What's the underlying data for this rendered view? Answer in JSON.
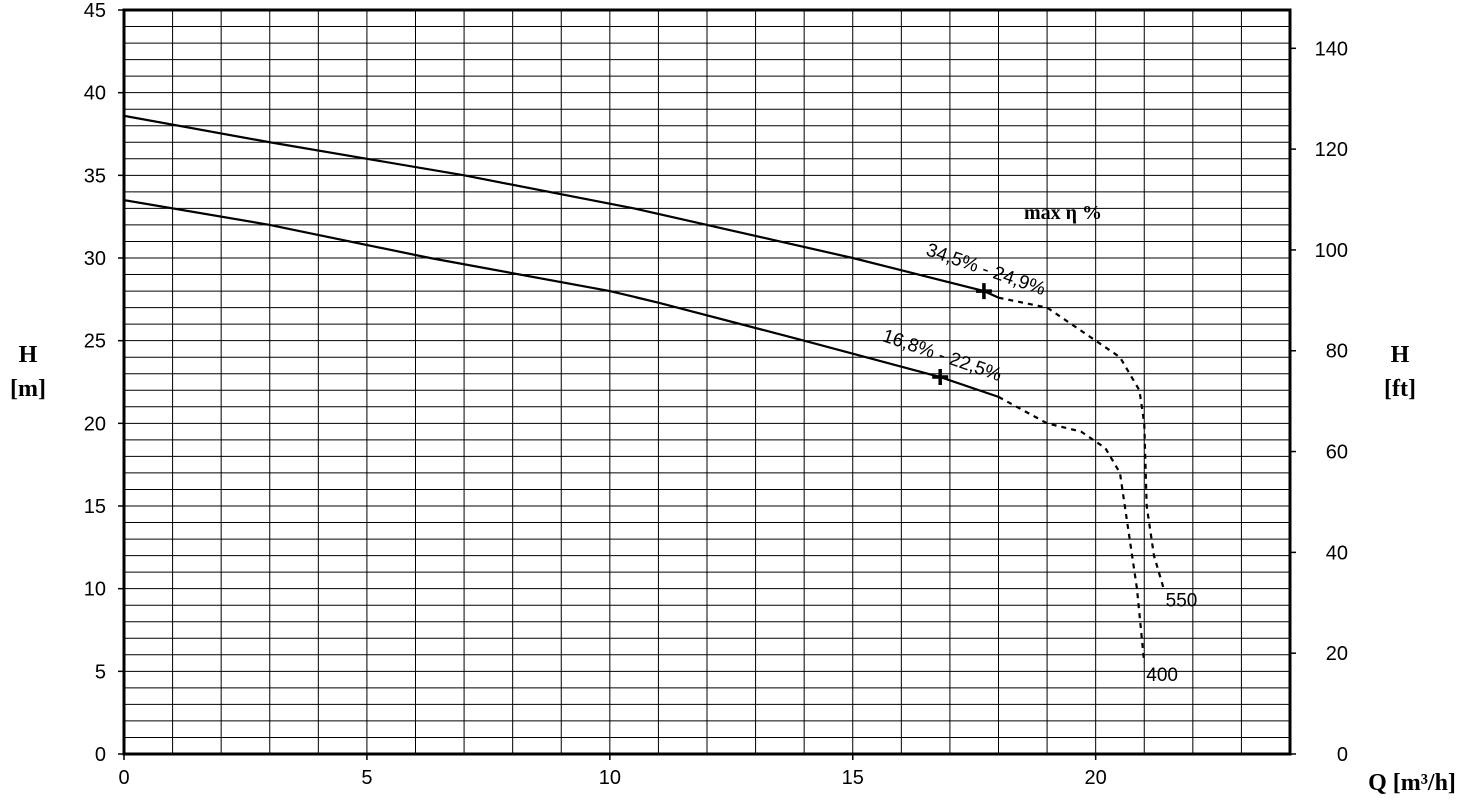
{
  "chart_data": {
    "type": "line",
    "xlabel": "Q [m³/h]",
    "ylabel": [
      "H",
      "[m]"
    ],
    "y2label": [
      "H",
      "[ft]"
    ],
    "xlim": [
      0,
      24
    ],
    "ylim": [
      0,
      45
    ],
    "y2lim": [
      0,
      147.6
    ],
    "xticks": [
      0,
      5,
      10,
      15,
      20
    ],
    "yticks": [
      0,
      5,
      10,
      15,
      20,
      25,
      30,
      35,
      40,
      45
    ],
    "y2ticks": [
      0,
      20,
      40,
      60,
      80,
      100,
      120,
      140
    ],
    "xminorticks": [
      0,
      1,
      2,
      3,
      4,
      5,
      6,
      7,
      8,
      9,
      10,
      11,
      12,
      13,
      14,
      15,
      16,
      17,
      18,
      19,
      20,
      21,
      22,
      23,
      24
    ],
    "yminorticks": [
      0,
      1,
      2,
      3,
      4,
      5,
      6,
      7,
      8,
      9,
      10,
      11,
      12,
      13,
      14,
      15,
      16,
      17,
      18,
      19,
      20,
      21,
      22,
      23,
      24,
      25,
      26,
      27,
      28,
      29,
      30,
      31,
      32,
      33,
      34,
      35,
      36,
      37,
      38,
      39,
      40,
      41,
      42,
      43,
      44,
      45
    ],
    "grid": true,
    "annotations": [
      "max η %"
    ],
    "series": [
      {
        "name": "550",
        "color": "#000000",
        "solid": {
          "x": [
            0,
            3,
            5,
            7,
            10.5,
            13.5,
            15,
            17.7,
            18
          ],
          "values": [
            38.6,
            37,
            36,
            35,
            33,
            31,
            30,
            28,
            27.6
          ]
        },
        "dashed": {
          "x": [
            18,
            19,
            20,
            20.5,
            20.9,
            21,
            21.05,
            21.2,
            21.4
          ],
          "values": [
            27.6,
            27,
            25,
            24,
            22,
            20,
            15,
            12,
            10
          ]
        },
        "marker": {
          "x": 17.7,
          "y": 28
        },
        "marker_label": "34,5% - 24,9%"
      },
      {
        "name": "400",
        "color": "#000000",
        "solid": {
          "x": [
            0,
            3,
            6.3,
            10,
            11,
            14,
            16.8,
            18
          ],
          "values": [
            33.5,
            32,
            30,
            28,
            27.3,
            25,
            22.8,
            21.6
          ]
        },
        "dashed": {
          "x": [
            18,
            18.5,
            19,
            19.7,
            20.2,
            20.5,
            20.6,
            20.85,
            21
          ],
          "values": [
            21.6,
            20.8,
            20,
            19.5,
            18.5,
            17,
            15,
            10,
            5.5
          ]
        },
        "marker": {
          "x": 16.8,
          "y": 22.8
        },
        "marker_label": "16,8% - 22,5%"
      }
    ]
  }
}
